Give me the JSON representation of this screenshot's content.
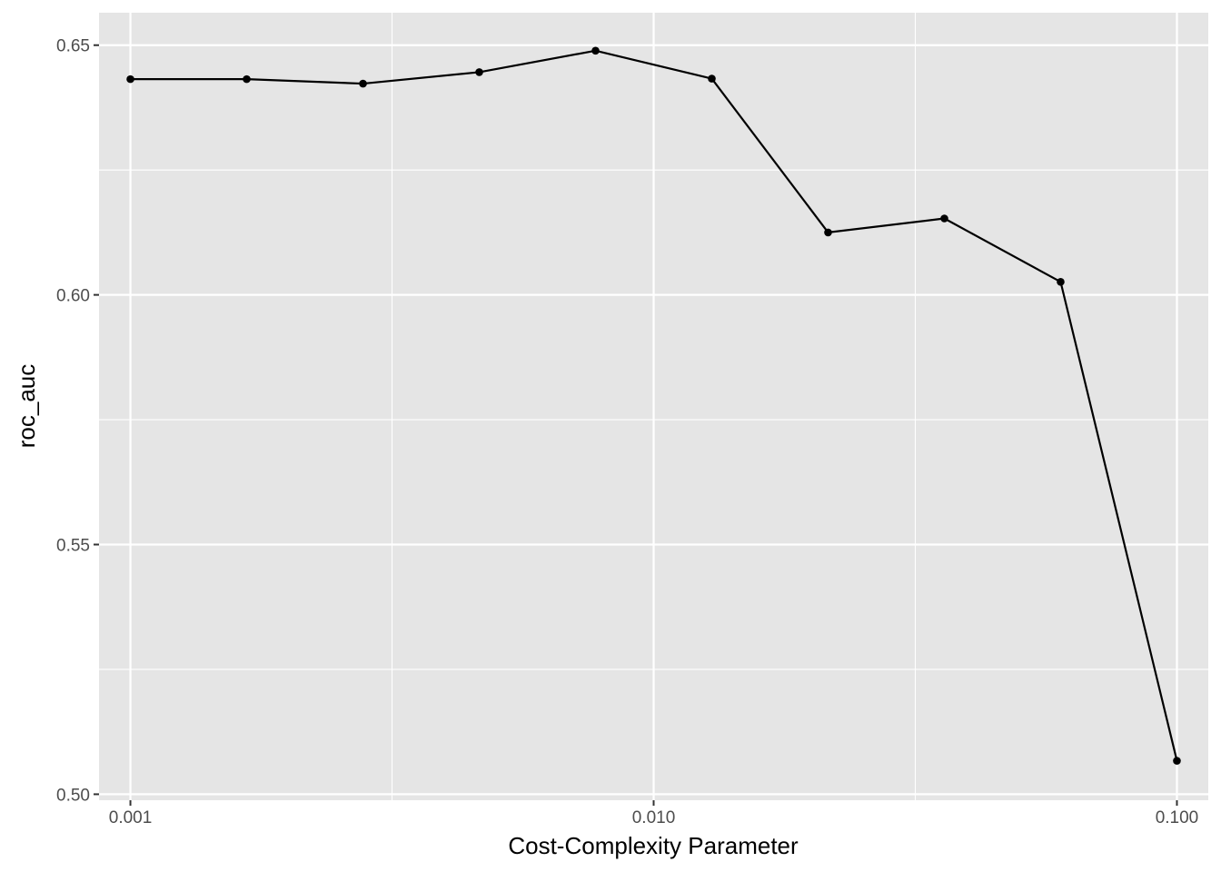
{
  "chart_data": {
    "type": "line",
    "title": "",
    "xlabel": "Cost-Complexity Parameter",
    "ylabel": "roc_auc",
    "x_scale": "log10",
    "xlim": [
      0.000871,
      0.1148
    ],
    "ylim": [
      0.4988,
      0.6565
    ],
    "x_ticks": [
      {
        "value": 0.001,
        "label": "0.001"
      },
      {
        "value": 0.01,
        "label": "0.010"
      },
      {
        "value": 0.1,
        "label": "0.100"
      }
    ],
    "y_ticks": [
      {
        "value": 0.5,
        "label": "0.50"
      },
      {
        "value": 0.55,
        "label": "0.55"
      },
      {
        "value": 0.6,
        "label": "0.60"
      },
      {
        "value": 0.65,
        "label": "0.65"
      }
    ],
    "grid": true,
    "legend": "none",
    "colors": {
      "panel": "#e5e5e5",
      "grid": "#ffffff",
      "line": "#000000"
    },
    "series": [
      {
        "x": [
          0.001,
          0.001668,
          0.002783,
          0.004642,
          0.007743,
          0.012915,
          0.021544,
          0.035938,
          0.059948,
          0.1
        ],
        "y": [
          0.6432,
          0.6432,
          0.6423,
          0.6446,
          0.6489,
          0.6433,
          0.6125,
          0.6153,
          0.6026,
          0.5067
        ]
      }
    ]
  }
}
